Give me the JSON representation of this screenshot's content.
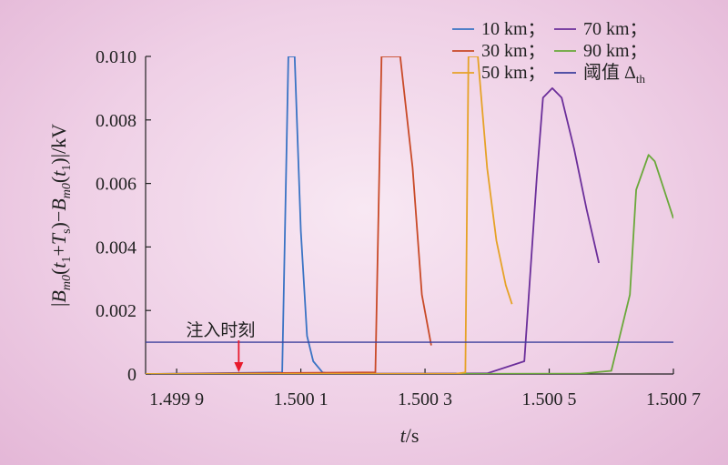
{
  "chart_data": {
    "type": "line",
    "xlabel": "t/s",
    "ylabel": "|B_m0(t_1+T_s)−B_m0(t_1)|/kV",
    "xlim": [
      1.49985,
      1.5007
    ],
    "ylim": [
      0,
      0.01
    ],
    "x_ticks": [
      1.4999,
      1.5001,
      1.5003,
      1.5005,
      1.5007
    ],
    "x_tick_labels": [
      "1.499 9",
      "1.500 1",
      "1.500 3",
      "1.500 5",
      "1.500 7"
    ],
    "y_ticks": [
      0,
      0.002,
      0.004,
      0.006,
      0.008,
      0.01
    ],
    "y_tick_labels": [
      "0",
      "0.002",
      "0.004",
      "0.006",
      "0.008",
      "0.010"
    ],
    "legend_position": "top-right",
    "series": [
      {
        "name": "10 km；",
        "color": "#3a73c4",
        "x": [
          1.49985,
          1.50007,
          1.50008,
          1.500085,
          1.50009,
          1.5001,
          1.50011,
          1.50012,
          1.500135,
          1.50015
        ],
        "y": [
          0,
          5e-05,
          0.01,
          0.01,
          0.01,
          0.0045,
          0.0012,
          0.0004,
          5e-05,
          0
        ]
      },
      {
        "name": "70 km；",
        "color": "#6b2e9a",
        "x": [
          1.49985,
          1.5004,
          1.50046,
          1.50048,
          1.50049,
          1.500505,
          1.50052,
          1.50054,
          1.50056,
          1.50058
        ],
        "y": [
          0,
          2e-05,
          0.0004,
          0.0062,
          0.0087,
          0.009,
          0.0087,
          0.0071,
          0.0052,
          0.0035
        ]
      },
      {
        "name": "30 km；",
        "color": "#c94a28",
        "x": [
          1.49985,
          1.5002,
          1.50022,
          1.50023,
          1.50026,
          1.50028,
          1.500295,
          1.50031
        ],
        "y": [
          0,
          5e-05,
          5e-05,
          0.01,
          0.01,
          0.0065,
          0.0025,
          0.0009
        ]
      },
      {
        "name": "90 km；",
        "color": "#6aa83a",
        "x": [
          1.49985,
          1.50055,
          1.5006,
          1.50063,
          1.50064,
          1.50066,
          1.50067,
          1.500685,
          1.5007
        ],
        "y": [
          0,
          1e-05,
          0.0001,
          0.0025,
          0.0058,
          0.0069,
          0.0067,
          0.0058,
          0.0049
        ]
      },
      {
        "name": "50 km；",
        "color": "#e6a227",
        "x": [
          1.49985,
          1.50035,
          1.500365,
          1.50037,
          1.500385,
          1.5004,
          1.500415,
          1.50043,
          1.50044
        ],
        "y": [
          0,
          1e-05,
          5e-05,
          0.01,
          0.01,
          0.0065,
          0.0042,
          0.0028,
          0.0022
        ]
      },
      {
        "name": "阈值 Δth",
        "color": "#3b3f9c",
        "x": [
          1.49985,
          1.5007
        ],
        "y": [
          0.001,
          0.001
        ]
      }
    ],
    "annotation": {
      "text": "注入时刻",
      "x": 1.5,
      "color": "#e8192c"
    }
  }
}
